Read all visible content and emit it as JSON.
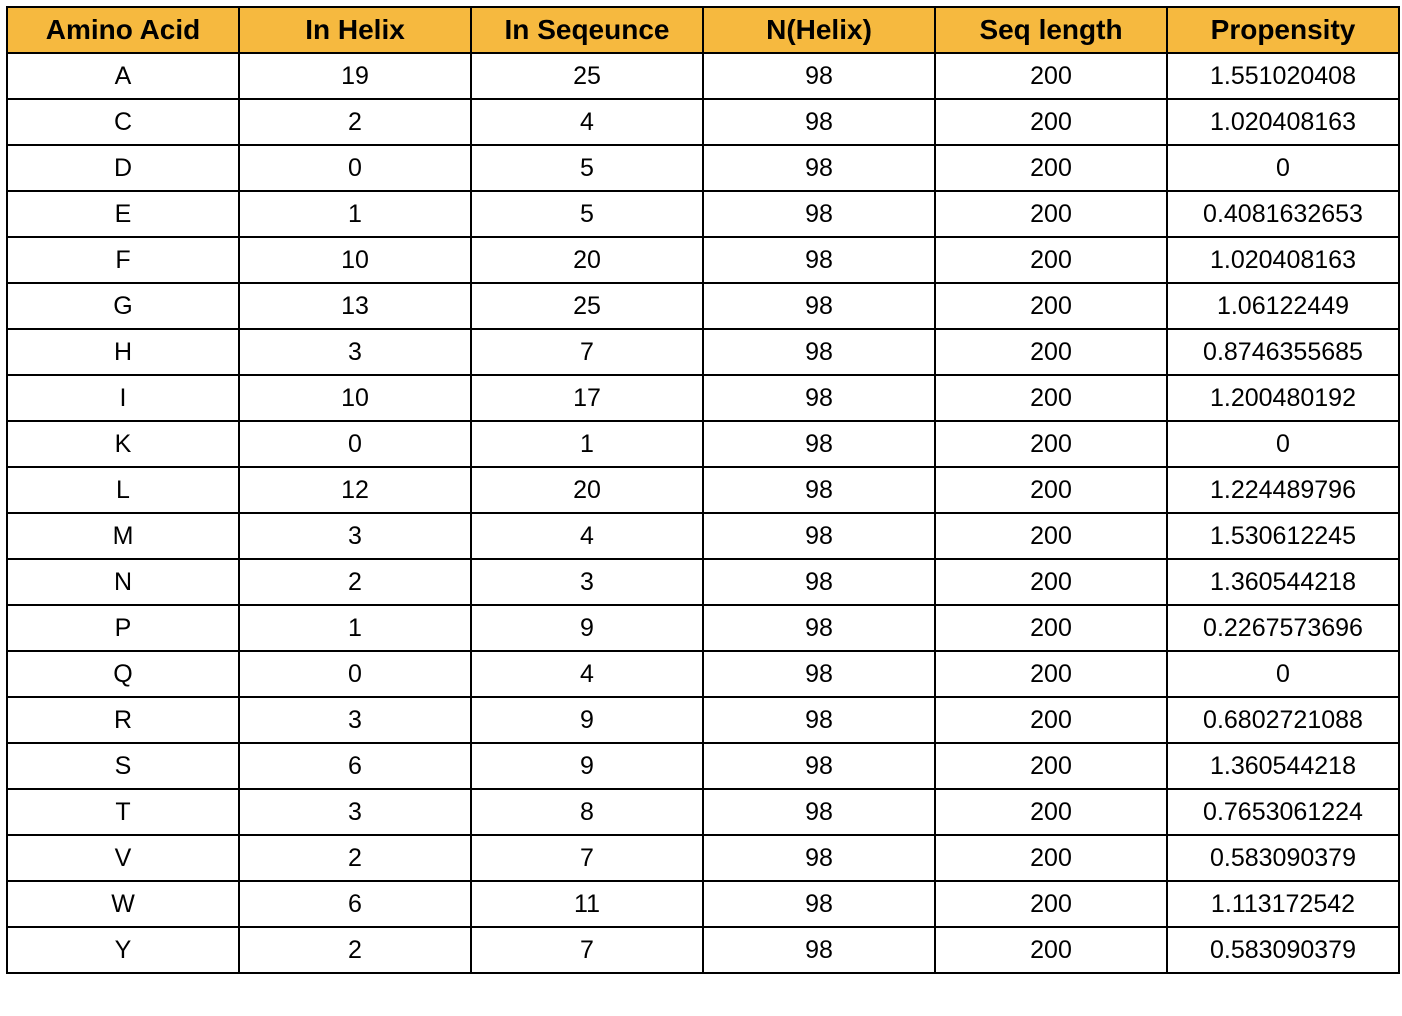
{
  "colors": {
    "header_bg": "#f6b93f",
    "grid": "#000000"
  },
  "table": {
    "headers": [
      "Amino Acid",
      "In Helix",
      "In Seqeunce",
      "N(Helix)",
      "Seq length",
      "Propensity"
    ],
    "rows": [
      [
        "A",
        "19",
        "25",
        "98",
        "200",
        "1.551020408"
      ],
      [
        "C",
        "2",
        "4",
        "98",
        "200",
        "1.020408163"
      ],
      [
        "D",
        "0",
        "5",
        "98",
        "200",
        "0"
      ],
      [
        "E",
        "1",
        "5",
        "98",
        "200",
        "0.4081632653"
      ],
      [
        "F",
        "10",
        "20",
        "98",
        "200",
        "1.020408163"
      ],
      [
        "G",
        "13",
        "25",
        "98",
        "200",
        "1.06122449"
      ],
      [
        "H",
        "3",
        "7",
        "98",
        "200",
        "0.8746355685"
      ],
      [
        "I",
        "10",
        "17",
        "98",
        "200",
        "1.200480192"
      ],
      [
        "K",
        "0",
        "1",
        "98",
        "200",
        "0"
      ],
      [
        "L",
        "12",
        "20",
        "98",
        "200",
        "1.224489796"
      ],
      [
        "M",
        "3",
        "4",
        "98",
        "200",
        "1.530612245"
      ],
      [
        "N",
        "2",
        "3",
        "98",
        "200",
        "1.360544218"
      ],
      [
        "P",
        "1",
        "9",
        "98",
        "200",
        "0.2267573696"
      ],
      [
        "Q",
        "0",
        "4",
        "98",
        "200",
        "0"
      ],
      [
        "R",
        "3",
        "9",
        "98",
        "200",
        "0.6802721088"
      ],
      [
        "S",
        "6",
        "9",
        "98",
        "200",
        "1.360544218"
      ],
      [
        "T",
        "3",
        "8",
        "98",
        "200",
        "0.7653061224"
      ],
      [
        "V",
        "2",
        "7",
        "98",
        "200",
        "0.583090379"
      ],
      [
        "W",
        "6",
        "11",
        "98",
        "200",
        "1.113172542"
      ],
      [
        "Y",
        "2",
        "7",
        "98",
        "200",
        "0.583090379"
      ]
    ]
  }
}
